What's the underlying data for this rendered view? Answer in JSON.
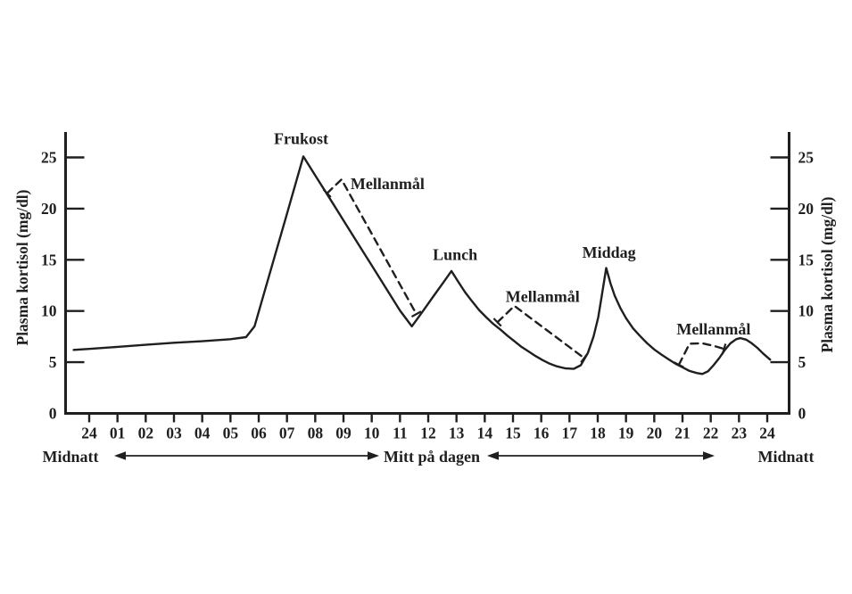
{
  "chart_data": {
    "type": "line",
    "title": "",
    "xlabel": "",
    "ylabel": "Plasma kortisol (mg/dl)",
    "ylabel_right": "Plasma kortisol (mg/dl)",
    "ylim": [
      0,
      27.5
    ],
    "xlim": [
      0,
      24
    ],
    "grid": false,
    "background": "#ffffff",
    "line_color": "#1f1f1f",
    "text_color": "#1f1f1f",
    "y_ticks": [
      0,
      5,
      10,
      15,
      20,
      25
    ],
    "x_tick_labels": [
      "24",
      "01",
      "02",
      "03",
      "04",
      "05",
      "06",
      "07",
      "08",
      "09",
      "10",
      "11",
      "12",
      "13",
      "14",
      "15",
      "16",
      "17",
      "18",
      "19",
      "20",
      "21",
      "22",
      "23",
      "24"
    ],
    "series": [
      {
        "label": "",
        "style": "solid",
        "points": [
          [
            -0.55,
            6.2
          ],
          [
            0,
            6.3
          ],
          [
            1,
            6.5
          ],
          [
            2,
            6.7
          ],
          [
            3,
            6.9
          ],
          [
            4,
            7.05
          ],
          [
            5,
            7.25
          ],
          [
            5.55,
            7.45
          ],
          [
            5.85,
            8.5
          ],
          [
            6.1,
            10.9
          ],
          [
            6.5,
            14.7
          ],
          [
            7,
            19.5
          ],
          [
            7.3,
            22.4
          ],
          [
            7.58,
            25.1
          ],
          [
            8,
            23.25
          ],
          [
            8.5,
            21.05
          ],
          [
            9,
            18.85
          ],
          [
            9.5,
            16.65
          ],
          [
            10,
            14.45
          ],
          [
            10.5,
            12.25
          ],
          [
            11,
            10.05
          ],
          [
            11.42,
            8.5
          ],
          [
            11.8,
            9.95
          ],
          [
            12.2,
            11.5
          ],
          [
            12.5,
            12.65
          ],
          [
            12.82,
            13.9
          ],
          [
            13.05,
            12.9
          ],
          [
            13.3,
            11.85
          ],
          [
            13.55,
            10.95
          ],
          [
            13.8,
            10.1
          ],
          [
            14.05,
            9.4
          ],
          [
            14.3,
            8.75
          ],
          [
            14.55,
            8.2
          ],
          [
            14.8,
            7.6
          ],
          [
            15.05,
            7.05
          ],
          [
            15.3,
            6.5
          ],
          [
            15.55,
            6.05
          ],
          [
            15.8,
            5.6
          ],
          [
            16.05,
            5.2
          ],
          [
            16.3,
            4.85
          ],
          [
            16.55,
            4.6
          ],
          [
            16.85,
            4.4
          ],
          [
            17.15,
            4.35
          ],
          [
            17.4,
            4.7
          ],
          [
            17.65,
            5.9
          ],
          [
            17.85,
            7.5
          ],
          [
            18.02,
            9.4
          ],
          [
            18.16,
            11.8
          ],
          [
            18.3,
            14.2
          ],
          [
            18.45,
            12.7
          ],
          [
            18.6,
            11.5
          ],
          [
            18.8,
            10.3
          ],
          [
            19,
            9.3
          ],
          [
            19.25,
            8.3
          ],
          [
            19.5,
            7.55
          ],
          [
            19.75,
            6.85
          ],
          [
            20,
            6.25
          ],
          [
            20.25,
            5.75
          ],
          [
            20.5,
            5.3
          ],
          [
            20.75,
            4.85
          ],
          [
            21,
            4.5
          ],
          [
            21.25,
            4.15
          ],
          [
            21.5,
            3.95
          ],
          [
            21.7,
            3.85
          ],
          [
            21.9,
            4.1
          ],
          [
            22.1,
            4.7
          ],
          [
            22.3,
            5.4
          ],
          [
            22.5,
            6.2
          ],
          [
            22.7,
            6.85
          ],
          [
            22.9,
            7.25
          ],
          [
            23.05,
            7.35
          ],
          [
            23.25,
            7.2
          ],
          [
            23.45,
            6.85
          ],
          [
            23.65,
            6.4
          ],
          [
            23.85,
            5.85
          ],
          [
            24.1,
            5.25
          ]
        ]
      },
      {
        "label": "Mellanmål",
        "style": "dashed",
        "points": [
          [
            8.42,
            21.5
          ],
          [
            8.93,
            22.85
          ],
          [
            11.58,
            9.7
          ]
        ]
      },
      {
        "label": "Mellanmål",
        "style": "dashed",
        "points": [
          [
            14.45,
            8.9
          ],
          [
            15.05,
            10.5
          ],
          [
            17.52,
            5.4
          ]
        ]
      },
      {
        "label": "Mellanmål",
        "style": "dashed",
        "points": [
          [
            20.87,
            4.75
          ],
          [
            21.25,
            6.8
          ],
          [
            21.7,
            6.85
          ],
          [
            22.1,
            6.6
          ],
          [
            22.47,
            6.3
          ]
        ]
      }
    ],
    "annotations": [
      {
        "text": "Frukost",
        "x": 7.5,
        "y": 26.3,
        "anchor": "middle"
      },
      {
        "text": "Mellanmål",
        "x": 9.25,
        "y": 21.9,
        "anchor": "start"
      },
      {
        "text": "Lunch",
        "x": 12.95,
        "y": 15.0,
        "anchor": "middle"
      },
      {
        "text": "Mellanmål",
        "x": 16.05,
        "y": 10.9,
        "anchor": "middle"
      },
      {
        "text": "Middag",
        "x": 18.4,
        "y": 15.2,
        "anchor": "middle"
      },
      {
        "text": "Mellanmål",
        "x": 22.1,
        "y": 7.7,
        "anchor": "middle"
      }
    ],
    "footer": {
      "midnatt_left": "Midnatt",
      "mitt_pa_dagen": "Mitt på dagen",
      "midnatt_right": "Midnatt"
    }
  }
}
